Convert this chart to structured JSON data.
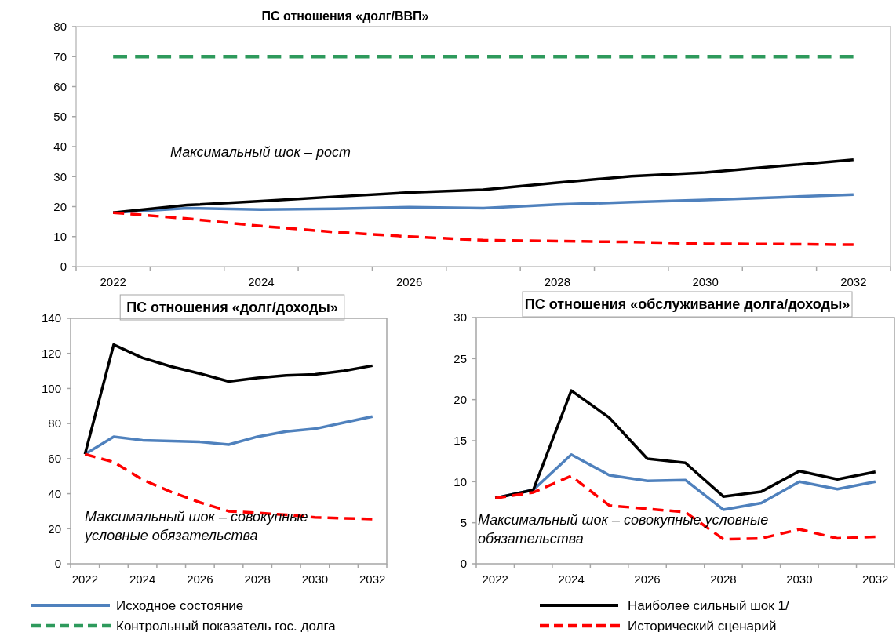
{
  "chart_data": [
    {
      "type": "line",
      "title": "ПС отношения «долг/ВВП»",
      "categories": [
        "2022",
        null,
        "2024",
        null,
        "2026",
        null,
        "2028",
        null,
        "2030",
        null,
        "2032"
      ],
      "ylim": [
        0,
        80
      ],
      "yticks": [
        0,
        10,
        20,
        30,
        40,
        50,
        60,
        70,
        80
      ],
      "grid": false,
      "legend": "bottom",
      "annotations": [
        "Максимальный шок – рост"
      ],
      "series": [
        {
          "name": "Исходное состояние",
          "color": "#4f81bd",
          "line_style": "solid",
          "values": [
            18,
            19.5,
            19,
            19.3,
            19.8,
            19.5,
            20.7,
            21.5,
            22.2,
            23.1,
            24
          ]
        },
        {
          "name": "Контрольный показатель гос. долга",
          "color": "#2e9a5c",
          "line_style": "dashed",
          "values": [
            70,
            70,
            70,
            70,
            70,
            70,
            70,
            70,
            70,
            70,
            70
          ]
        },
        {
          "name": "Наиболее сильный шок 1/",
          "color": "#000000",
          "line_style": "solid",
          "values": [
            18,
            20.5,
            21.8,
            23.3,
            24.7,
            25.6,
            28,
            30.1,
            31.4,
            33.5,
            35.6
          ]
        },
        {
          "name": "Исторический сценарий",
          "color": "#ff0000",
          "line_style": "dashed",
          "values": [
            18,
            16,
            13.5,
            11.5,
            10,
            8.8,
            8.5,
            8.2,
            7.6,
            7.5,
            7.3
          ]
        }
      ]
    },
    {
      "type": "line",
      "title": "ПС отношения «долг/доходы»",
      "categories": [
        "2022",
        null,
        "2024",
        null,
        "2026",
        null,
        "2028",
        null,
        "2030",
        null,
        "2032"
      ],
      "ylim": [
        0,
        140
      ],
      "yticks": [
        0,
        20,
        40,
        60,
        80,
        100,
        120,
        140
      ],
      "grid": false,
      "annotations": [
        "Максимальный шок – совокупные условные обязательства"
      ],
      "series": [
        {
          "color": "#4f81bd",
          "line_style": "solid",
          "values": [
            62.5,
            72.5,
            70.5,
            70,
            69.5,
            68,
            72.5,
            75.5,
            77,
            80.5,
            84
          ]
        },
        {
          "color": "#000000",
          "line_style": "solid",
          "values": [
            62.5,
            125,
            117.5,
            112.5,
            108.5,
            104,
            106,
            107.5,
            108,
            110,
            113
          ]
        },
        {
          "color": "#ff0000",
          "line_style": "dashed",
          "values": [
            62.5,
            58,
            48,
            41,
            35,
            30,
            29,
            28,
            26.5,
            26,
            25.5
          ]
        }
      ]
    },
    {
      "type": "line",
      "title": "ПС отношения «обслуживание долга/доходы»",
      "categories": [
        "2022",
        null,
        "2024",
        null,
        "2026",
        null,
        "2028",
        null,
        "2030",
        null,
        "2032"
      ],
      "ylim": [
        0,
        30
      ],
      "yticks": [
        0,
        5,
        10,
        15,
        20,
        25,
        30
      ],
      "grid": false,
      "annotations": [
        "Максимальный шок – совокупные условные обязательства"
      ],
      "series": [
        {
          "color": "#4f81bd",
          "line_style": "solid",
          "values": [
            8,
            9,
            13.3,
            10.8,
            10.1,
            10.2,
            6.6,
            7.4,
            10,
            9.1,
            10
          ]
        },
        {
          "color": "#000000",
          "line_style": "solid",
          "values": [
            8,
            9,
            21.1,
            17.8,
            12.8,
            12.3,
            8.2,
            8.8,
            11.3,
            10.3,
            11.2
          ]
        },
        {
          "color": "#ff0000",
          "line_style": "dashed",
          "values": [
            8,
            8.7,
            10.7,
            7.1,
            6.7,
            6.3,
            3,
            3.1,
            4.2,
            3.1,
            3.3
          ]
        }
      ]
    }
  ]
}
